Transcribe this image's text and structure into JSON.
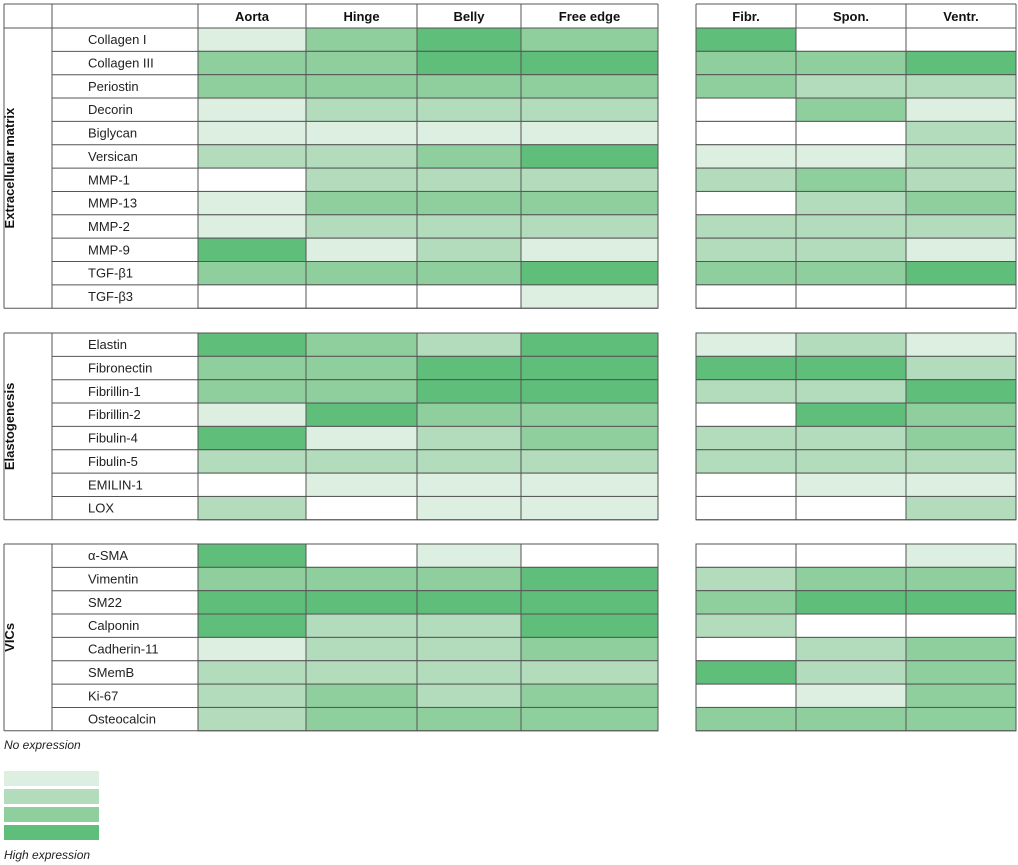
{
  "chart_data": {
    "type": "heatmap",
    "columns": [
      "Aorta",
      "Hinge",
      "Belly",
      "Free edge",
      "Fibr.",
      "Spon.",
      "Ventr."
    ],
    "column_groups": [
      [
        "Aorta",
        "Hinge",
        "Belly",
        "Free edge"
      ],
      [
        "Fibr.",
        "Spon.",
        "Ventr."
      ]
    ],
    "scale_colors": [
      "#ffffff",
      "#dcefe1",
      "#b3dcbc",
      "#8fcf9d",
      "#5fbe7a"
    ],
    "sections": [
      {
        "label": "Extracellular matrix",
        "rows": [
          {
            "name": "Collagen I",
            "values": [
              1,
              3,
              4,
              3,
              4,
              0,
              0
            ]
          },
          {
            "name": "Collagen III",
            "values": [
              3,
              3,
              4,
              4,
              3,
              3,
              4
            ]
          },
          {
            "name": "Periostin",
            "values": [
              3,
              3,
              3,
              3,
              3,
              2,
              2
            ]
          },
          {
            "name": "Decorin",
            "values": [
              1,
              2,
              2,
              2,
              0,
              3,
              1
            ]
          },
          {
            "name": "Biglycan",
            "values": [
              1,
              1,
              1,
              1,
              0,
              0,
              2
            ]
          },
          {
            "name": "Versican",
            "values": [
              2,
              2,
              3,
              4,
              1,
              1,
              2
            ]
          },
          {
            "name": "MMP-1",
            "values": [
              0,
              2,
              2,
              2,
              2,
              3,
              2
            ]
          },
          {
            "name": "MMP-13",
            "values": [
              1,
              3,
              3,
              3,
              0,
              2,
              3
            ]
          },
          {
            "name": "MMP-2",
            "values": [
              1,
              2,
              2,
              2,
              2,
              2,
              2
            ]
          },
          {
            "name": "MMP-9",
            "values": [
              4,
              1,
              2,
              1,
              2,
              2,
              1
            ]
          },
          {
            "name": "TGF-β1",
            "values": [
              3,
              3,
              3,
              4,
              3,
              3,
              4
            ]
          },
          {
            "name": "TGF-β3",
            "values": [
              0,
              0,
              0,
              1,
              0,
              0,
              0
            ]
          }
        ]
      },
      {
        "label": "Elastogenesis",
        "rows": [
          {
            "name": "Elastin",
            "values": [
              4,
              3,
              2,
              4,
              1,
              2,
              1
            ]
          },
          {
            "name": "Fibronectin",
            "values": [
              3,
              3,
              4,
              4,
              4,
              4,
              2
            ]
          },
          {
            "name": "Fibrillin-1",
            "values": [
              3,
              3,
              4,
              4,
              2,
              2,
              4
            ]
          },
          {
            "name": "Fibrillin-2",
            "values": [
              1,
              4,
              3,
              3,
              0,
              4,
              3
            ]
          },
          {
            "name": "Fibulin-4",
            "values": [
              4,
              1,
              2,
              3,
              2,
              2,
              3
            ]
          },
          {
            "name": "Fibulin-5",
            "values": [
              2,
              2,
              2,
              2,
              2,
              2,
              2
            ]
          },
          {
            "name": "EMILIN-1",
            "values": [
              0,
              1,
              1,
              1,
              0,
              1,
              1
            ]
          },
          {
            "name": "LOX",
            "values": [
              2,
              0,
              1,
              1,
              0,
              0,
              2
            ]
          }
        ]
      },
      {
        "label": "VICs",
        "rows": [
          {
            "name": "α-SMA",
            "values": [
              4,
              0,
              1,
              0,
              0,
              0,
              1
            ]
          },
          {
            "name": "Vimentin",
            "values": [
              3,
              3,
              3,
              4,
              2,
              3,
              3
            ]
          },
          {
            "name": "SM22",
            "values": [
              4,
              4,
              4,
              4,
              3,
              4,
              4
            ]
          },
          {
            "name": "Calponin",
            "values": [
              4,
              2,
              2,
              4,
              2,
              0,
              0
            ]
          },
          {
            "name": "Cadherin-11",
            "values": [
              1,
              2,
              2,
              3,
              0,
              2,
              3
            ]
          },
          {
            "name": "SMemB",
            "values": [
              2,
              2,
              2,
              2,
              4,
              2,
              3
            ]
          },
          {
            "name": "Ki-67",
            "values": [
              2,
              3,
              2,
              3,
              0,
              1,
              3
            ]
          },
          {
            "name": "Osteocalcin",
            "values": [
              2,
              3,
              3,
              3,
              3,
              3,
              3
            ]
          }
        ]
      }
    ],
    "legend": {
      "low_label": "No expression",
      "high_label": "High expression",
      "levels": [
        1,
        2,
        3,
        4
      ]
    }
  }
}
